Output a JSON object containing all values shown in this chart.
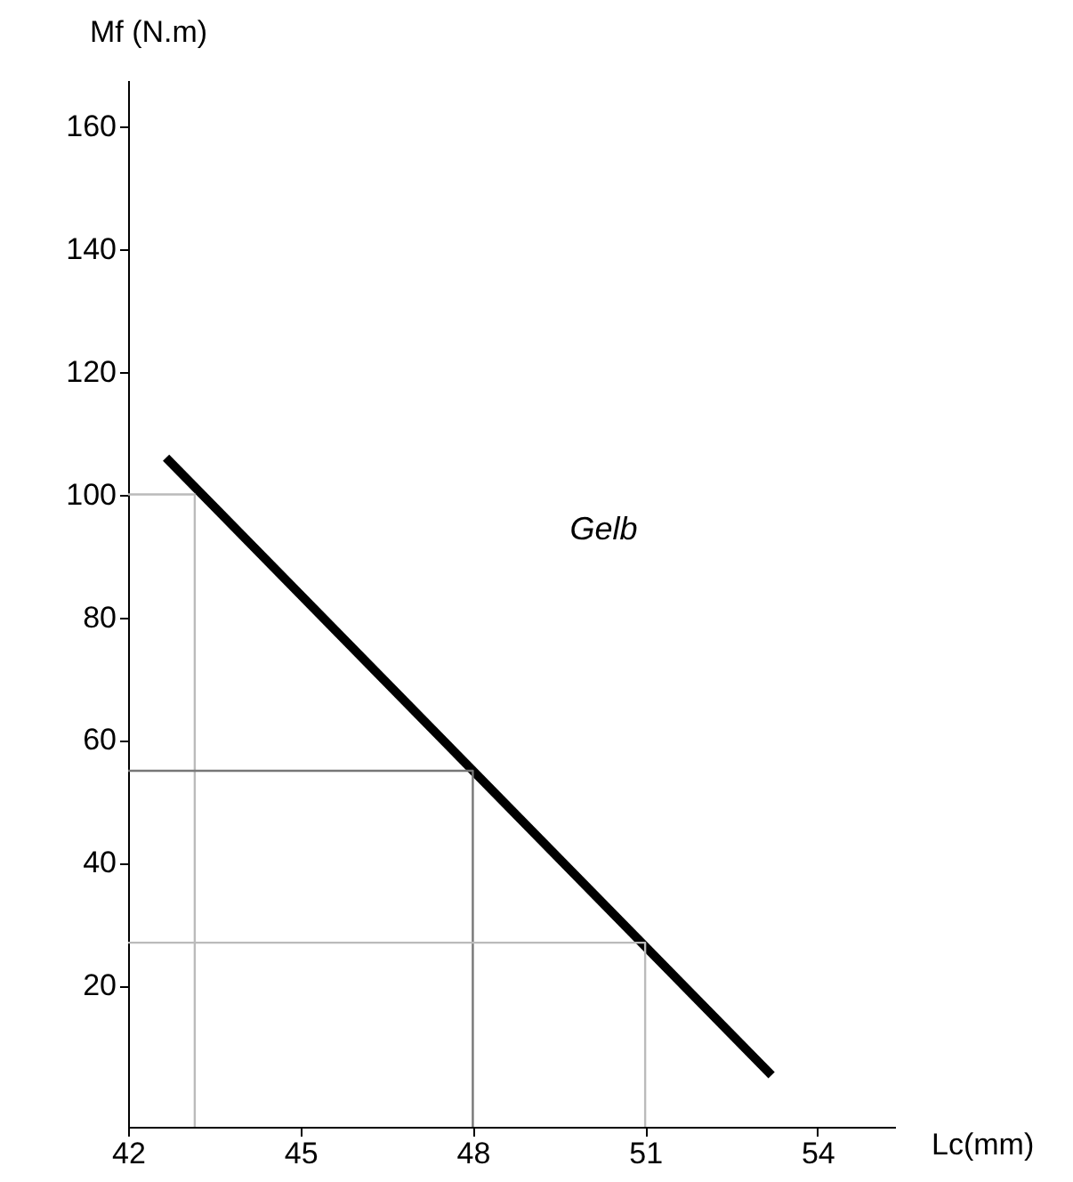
{
  "chart_data": {
    "type": "line",
    "xlabel": "Lc(mm)",
    "ylabel": "Mf (N.m)",
    "xlim": [
      42,
      55.35
    ],
    "ylim": [
      -3,
      167.5
    ],
    "xticks": [
      42,
      45,
      48,
      51,
      54
    ],
    "yticks": [
      20,
      40,
      60,
      80,
      100,
      120,
      140,
      160
    ],
    "grid": false,
    "series": [
      {
        "name": "Gelb",
        "x": [
          42.66,
          53.2
        ],
        "values": [
          106,
          5.4
        ],
        "color": "#000000"
      },
      {
        "x": [
          42,
          43.16,
          43.16
        ],
        "values": [
          100,
          100,
          -3
        ],
        "color": "#bbbbbb"
      },
      {
        "x": [
          42,
          48,
          48
        ],
        "values": [
          55,
          55,
          -3
        ],
        "color": "#777777"
      },
      {
        "x": [
          42,
          51,
          51
        ],
        "values": [
          27,
          27,
          -3
        ],
        "color": "#bbbbbb"
      }
    ]
  }
}
